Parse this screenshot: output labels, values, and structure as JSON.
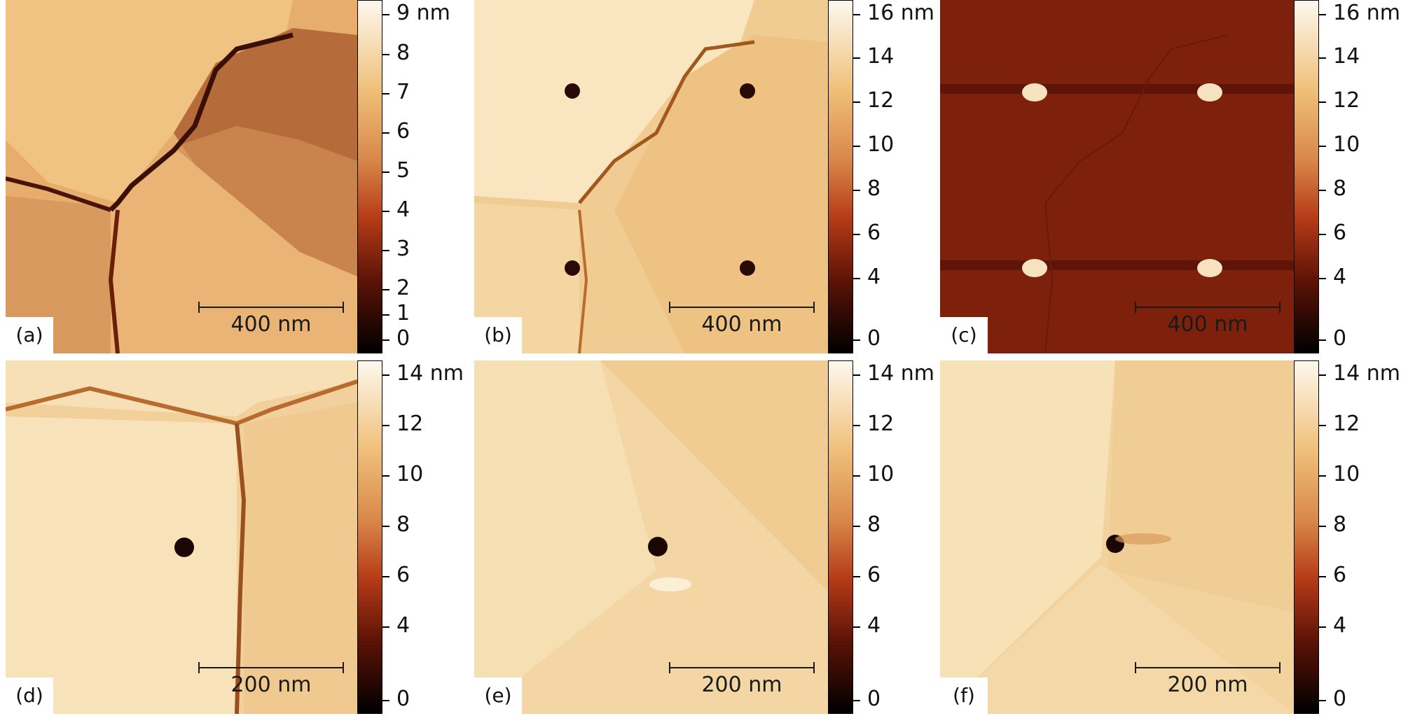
{
  "panels": [
    {
      "label": "(a)",
      "scale_bar": "400 nm",
      "colorbar": {
        "max_label": "9 nm",
        "ticks": [
          "8",
          "7",
          "6",
          "5",
          "4",
          "3",
          "2",
          "1",
          "0"
        ]
      }
    },
    {
      "label": "(b)",
      "scale_bar": "400 nm",
      "colorbar": {
        "max_label": "16 nm",
        "ticks": [
          "14",
          "12",
          "10",
          "8",
          "6",
          "4",
          "0"
        ]
      }
    },
    {
      "label": "(c)",
      "scale_bar": "400 nm",
      "colorbar": {
        "max_label": "16 nm",
        "ticks": [
          "14",
          "12",
          "10",
          "8",
          "6",
          "4",
          "0"
        ]
      }
    },
    {
      "label": "(d)",
      "scale_bar": "200 nm",
      "colorbar": {
        "max_label": "14 nm",
        "ticks": [
          "12",
          "10",
          "8",
          "6",
          "4",
          "0"
        ]
      }
    },
    {
      "label": "(e)",
      "scale_bar": "200 nm",
      "colorbar": {
        "max_label": "14 nm",
        "ticks": [
          "12",
          "10",
          "8",
          "6",
          "4",
          "0"
        ]
      }
    },
    {
      "label": "(f)",
      "scale_bar": "200 nm",
      "colorbar": {
        "max_label": "14 nm",
        "ticks": [
          "12",
          "10",
          "8",
          "6",
          "4",
          "0"
        ]
      }
    }
  ],
  "colormap": {
    "low": "#000000",
    "mid": "#c84a1e",
    "high": "#fdf6e8"
  }
}
